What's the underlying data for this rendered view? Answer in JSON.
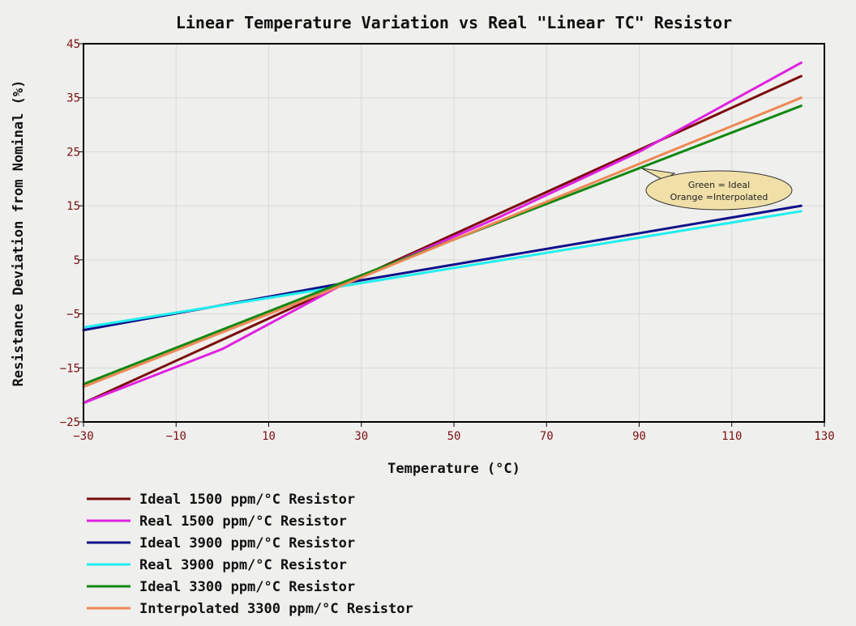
{
  "chart_data": {
    "type": "line",
    "title": "Linear Temperature Variation vs Real \"Linear TC\" Resistor",
    "xlabel": "Temperature (°C)",
    "ylabel": "Resistance Deviation from Nominal (%)",
    "xlim": [
      -30,
      130
    ],
    "ylim": [
      -25,
      45
    ],
    "xticks": [
      -30,
      -10,
      10,
      30,
      50,
      70,
      90,
      110,
      130
    ],
    "yticks": [
      -25,
      -15,
      -5,
      5,
      15,
      25,
      35,
      45
    ],
    "xtick_labels": [
      "−30",
      "−10",
      "10",
      "30",
      "50",
      "70",
      "90",
      "110",
      "130"
    ],
    "ytick_labels": [
      "−25",
      "−15",
      "−5",
      "5",
      "15",
      "25",
      "35",
      "45"
    ],
    "grid": true,
    "legend_position": "bottom",
    "series": [
      {
        "name": "Ideal 1500 ppm/°C Resistor",
        "color": "#7b0a0a",
        "x": [
          -30,
          25,
          125
        ],
        "y": [
          -21.5,
          0.0,
          39.0
        ]
      },
      {
        "name": "Real 1500 ppm/°C Resistor",
        "color": "#e020e0",
        "x": [
          -30,
          0,
          25,
          60,
          90,
          125
        ],
        "y": [
          -21.5,
          -11.5,
          0.0,
          13.0,
          25.0,
          41.5
        ]
      },
      {
        "name": "Ideal 3900 ppm/°C Resistor",
        "color": "#10108a",
        "x": [
          -30,
          25,
          125
        ],
        "y": [
          -8.0,
          0.5,
          15.0
        ]
      },
      {
        "name": "Real 3900 ppm/°C Resistor",
        "color": "#22eeee",
        "x": [
          -30,
          25,
          125
        ],
        "y": [
          -7.5,
          0.0,
          14.0
        ]
      },
      {
        "name": "Ideal 3300 ppm/°C Resistor",
        "color": "#118811",
        "x": [
          -30,
          25,
          125
        ],
        "y": [
          -18.0,
          0.5,
          33.5
        ]
      },
      {
        "name": "Interpolated 3300 ppm/°C Resistor",
        "color": "#ee8855",
        "x": [
          -30,
          25,
          125
        ],
        "y": [
          -18.5,
          0.0,
          35.0
        ]
      }
    ],
    "annotations": [
      {
        "lines": [
          "Green = Ideal",
          "Orange =Interpolated"
        ],
        "x": 90,
        "y": 22.5
      }
    ]
  }
}
